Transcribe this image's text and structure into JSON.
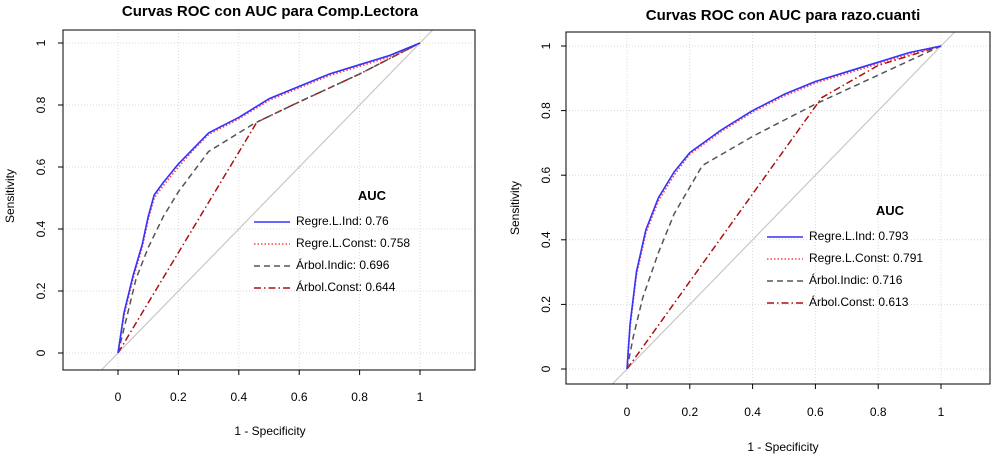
{
  "chart_data": [
    {
      "type": "line",
      "title": "Curvas ROC con AUC para Comp.Lectora",
      "xlabel": "1 - Specificity",
      "ylabel": "Sensitivity",
      "xlim": [
        -0.2,
        1.2
      ],
      "ylim": [
        0,
        1
      ],
      "x_ticks": [
        "0",
        "0.2",
        "0.4",
        "0.6",
        "0.8",
        "1"
      ],
      "y_ticks": [
        "0",
        "0.2",
        "0.4",
        "0.6",
        "0.8",
        "1"
      ],
      "grid": true,
      "legend_title": "AUC",
      "legend_position": "center-right",
      "series": [
        {
          "name": "Regre.L.Ind",
          "auc": "0.76",
          "color": "#3333ff",
          "dash": "solid",
          "x": [
            0,
            0.02,
            0.05,
            0.08,
            0.1,
            0.12,
            0.15,
            0.2,
            0.25,
            0.3,
            0.4,
            0.5,
            0.6,
            0.7,
            0.8,
            0.9,
            1
          ],
          "y": [
            0,
            0.13,
            0.25,
            0.35,
            0.44,
            0.51,
            0.55,
            0.61,
            0.66,
            0.71,
            0.76,
            0.82,
            0.86,
            0.9,
            0.93,
            0.96,
            1
          ]
        },
        {
          "name": "Regre.L.Const",
          "auc": "0.758",
          "color": "#ff4444",
          "dash": "dotted",
          "x": [
            0,
            0.02,
            0.05,
            0.08,
            0.1,
            0.12,
            0.15,
            0.2,
            0.25,
            0.3,
            0.4,
            0.5,
            0.6,
            0.7,
            0.8,
            0.9,
            1
          ],
          "y": [
            0,
            0.12,
            0.24,
            0.34,
            0.43,
            0.5,
            0.54,
            0.6,
            0.655,
            0.705,
            0.755,
            0.815,
            0.855,
            0.895,
            0.925,
            0.955,
            1
          ]
        },
        {
          "name": "Árbol.Indic",
          "auc": "0.696",
          "color": "#555555",
          "dash": "dashed",
          "x": [
            0,
            0.03,
            0.06,
            0.1,
            0.15,
            0.2,
            0.3,
            0.45,
            0.6,
            0.8,
            1
          ],
          "y": [
            0,
            0.12,
            0.24,
            0.34,
            0.44,
            0.52,
            0.65,
            0.74,
            0.81,
            0.9,
            1
          ]
        },
        {
          "name": "Árbol.Const",
          "auc": "0.644",
          "color": "#aa1111",
          "dash": "dotdash",
          "x": [
            0,
            0.46,
            0.6,
            0.8,
            1
          ],
          "y": [
            0,
            0.745,
            0.81,
            0.9,
            1
          ]
        }
      ]
    },
    {
      "type": "line",
      "title": "Curvas ROC con AUC para razo.cuanti",
      "xlabel": "1 - Specificity",
      "ylabel": "Sensitivity",
      "xlim": [
        -0.2,
        1.2
      ],
      "ylim": [
        0,
        1
      ],
      "x_ticks": [
        "0",
        "0.2",
        "0.4",
        "0.6",
        "0.8",
        "1"
      ],
      "y_ticks": [
        "0",
        "0.2",
        "0.4",
        "0.6",
        "0.8",
        "1"
      ],
      "grid": true,
      "legend_title": "AUC",
      "legend_position": "center-right",
      "series": [
        {
          "name": "Regre.L.Ind",
          "auc": "0.793",
          "color": "#3333ff",
          "dash": "solid",
          "x": [
            0,
            0.01,
            0.03,
            0.06,
            0.1,
            0.15,
            0.2,
            0.3,
            0.4,
            0.5,
            0.6,
            0.7,
            0.8,
            0.9,
            1
          ],
          "y": [
            0,
            0.14,
            0.3,
            0.43,
            0.53,
            0.61,
            0.67,
            0.74,
            0.8,
            0.85,
            0.89,
            0.92,
            0.95,
            0.98,
            1
          ]
        },
        {
          "name": "Regre.L.Const",
          "auc": "0.791",
          "color": "#ff4444",
          "dash": "dotted",
          "x": [
            0,
            0.01,
            0.03,
            0.06,
            0.1,
            0.15,
            0.2,
            0.3,
            0.4,
            0.5,
            0.6,
            0.7,
            0.8,
            0.9,
            1
          ],
          "y": [
            0,
            0.13,
            0.29,
            0.42,
            0.52,
            0.6,
            0.665,
            0.735,
            0.795,
            0.845,
            0.885,
            0.915,
            0.945,
            0.975,
            1
          ]
        },
        {
          "name": "Árbol.Indic",
          "auc": "0.716",
          "color": "#555555",
          "dash": "dashed",
          "x": [
            0,
            0.02,
            0.05,
            0.1,
            0.15,
            0.24,
            0.4,
            0.6,
            0.8,
            1
          ],
          "y": [
            0,
            0.1,
            0.22,
            0.36,
            0.48,
            0.63,
            0.72,
            0.82,
            0.91,
            1
          ]
        },
        {
          "name": "Árbol.Const",
          "auc": "0.613",
          "color": "#aa1111",
          "dash": "dotdash",
          "x": [
            0,
            0.62,
            0.8,
            1
          ],
          "y": [
            0,
            0.84,
            0.94,
            1
          ]
        }
      ]
    }
  ]
}
